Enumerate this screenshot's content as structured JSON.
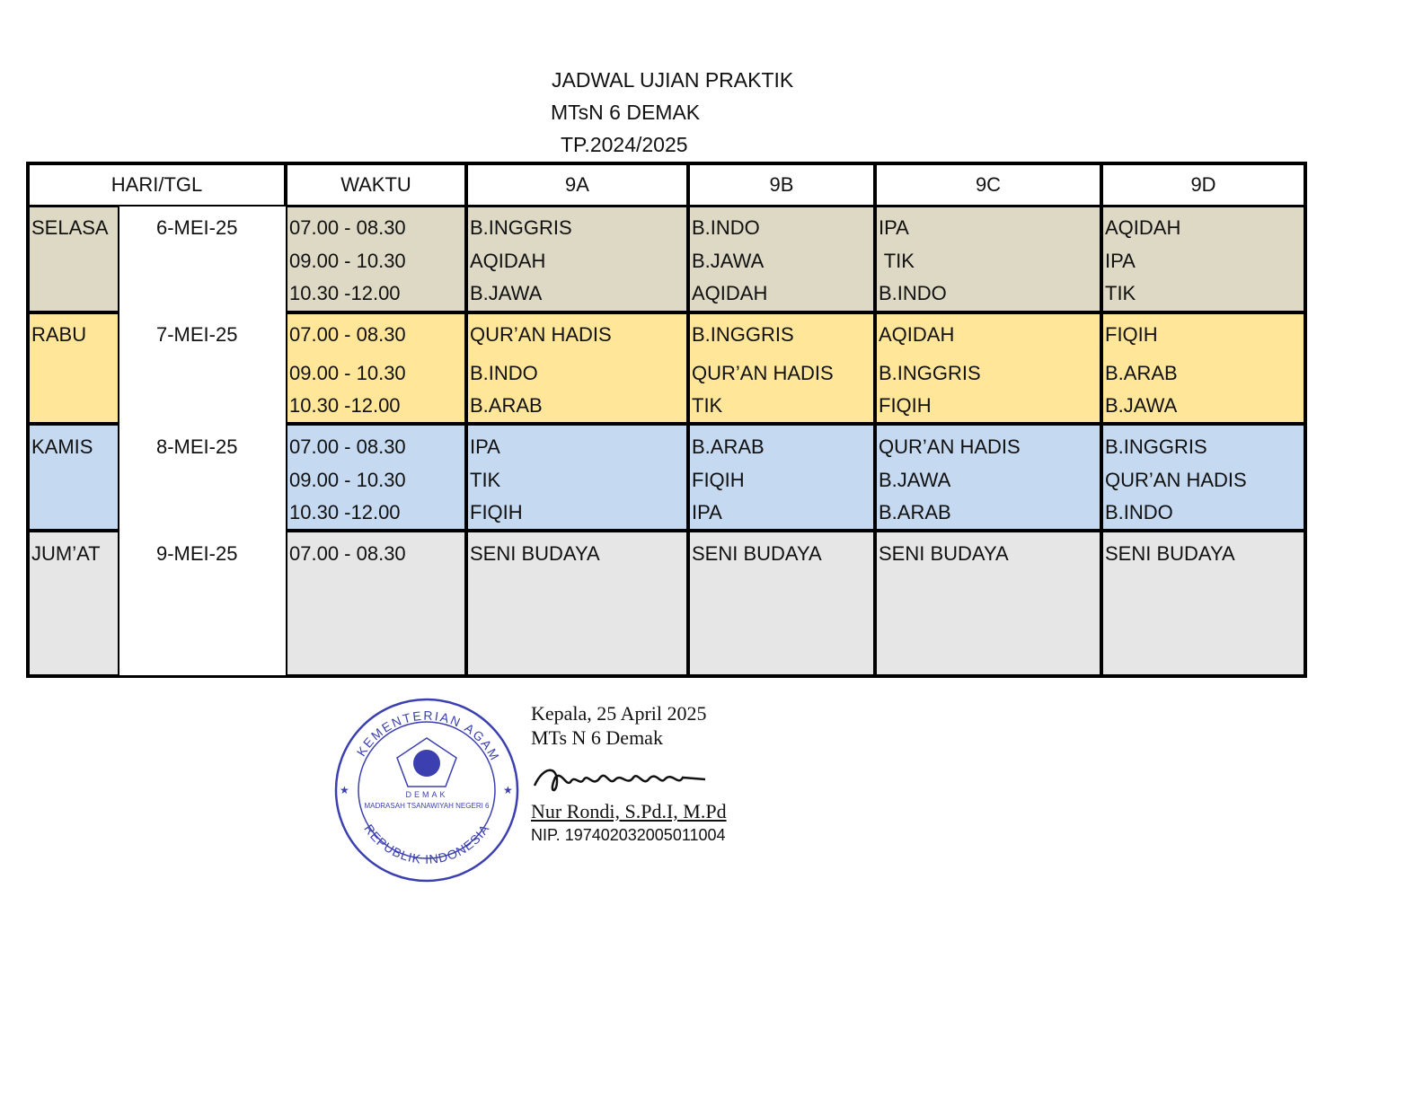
{
  "header": {
    "title": "JADWAL UJIAN PRAKTIK",
    "school": "MTsN 6 DEMAK",
    "year": "TP.2024/2025"
  },
  "table": {
    "columns": [
      "HARI/TGL",
      "WAKTU",
      "9A",
      "9B",
      "9C",
      "9D"
    ],
    "days": [
      {
        "day": "SELASA",
        "date": "6-MEI-25",
        "color": "#ddd9c4",
        "slots": [
          {
            "time": "07.00 - 08.30",
            "classes": [
              "B.INGGRIS",
              "B.INDO",
              "IPA",
              "AQIDAH"
            ]
          },
          {
            "time": "09.00 - 10.30",
            "classes": [
              "AQIDAH",
              "B.JAWA",
              " TIK",
              "IPA"
            ]
          },
          {
            "time": "10.30 -12.00",
            "classes": [
              "B.JAWA",
              "AQIDAH",
              "B.INDO",
              "TIK"
            ]
          }
        ]
      },
      {
        "day": "RABU",
        "date": "7-MEI-25",
        "color": "#ffe699",
        "slots": [
          {
            "time": "07.00 - 08.30",
            "classes": [
              "QUR’AN HADIS",
              "B.INGGRIS",
              "AQIDAH",
              "FIQIH"
            ]
          },
          {
            "time": "09.00 - 10.30",
            "classes": [
              "B.INDO",
              "QUR’AN HADIS",
              "B.INGGRIS",
              "B.ARAB"
            ]
          },
          {
            "time": "10.30 -12.00",
            "classes": [
              "B.ARAB",
              "TIK",
              "FIQIH",
              "B.JAWA"
            ]
          }
        ]
      },
      {
        "day": "KAMIS",
        "date": "8-MEI-25",
        "color": "#c5d9f1",
        "slots": [
          {
            "time": "07.00 - 08.30",
            "classes": [
              "IPA",
              "B.ARAB",
              "QUR’AN HADIS",
              "B.INGGRIS"
            ]
          },
          {
            "time": "09.00 - 10.30",
            "classes": [
              "TIK",
              "FIQIH",
              "B.JAWA",
              "QUR’AN HADIS"
            ]
          },
          {
            "time": "10.30 -12.00",
            "classes": [
              "FIQIH",
              "IPA",
              "B.ARAB",
              "B.INDO"
            ]
          }
        ]
      },
      {
        "day": "JUM’AT",
        "date": "9-MEI-25",
        "color": "#e6e6e6",
        "slots": [
          {
            "time": "07.00 - 08.30",
            "classes": [
              "SENI BUDAYA",
              "SENI BUDAYA",
              "SENI BUDAYA",
              "SENI BUDAYA"
            ]
          }
        ]
      }
    ]
  },
  "signature": {
    "place_date": "Kepala, 25 April 2025",
    "institution": "MTs N 6 Demak",
    "name": "Nur Rondi, S.Pd.I, M.Pd",
    "nip": "NIP. 197402032005011004"
  },
  "stamp": {
    "top_text": "KEMENTERIAN AGAMA",
    "bottom_text": "REPUBLIK INDONESIA",
    "inner_text": "MADRASAH TSANAWIYAH NEGERI 6",
    "city": "DEMAK",
    "color": "#3b3fb0"
  }
}
